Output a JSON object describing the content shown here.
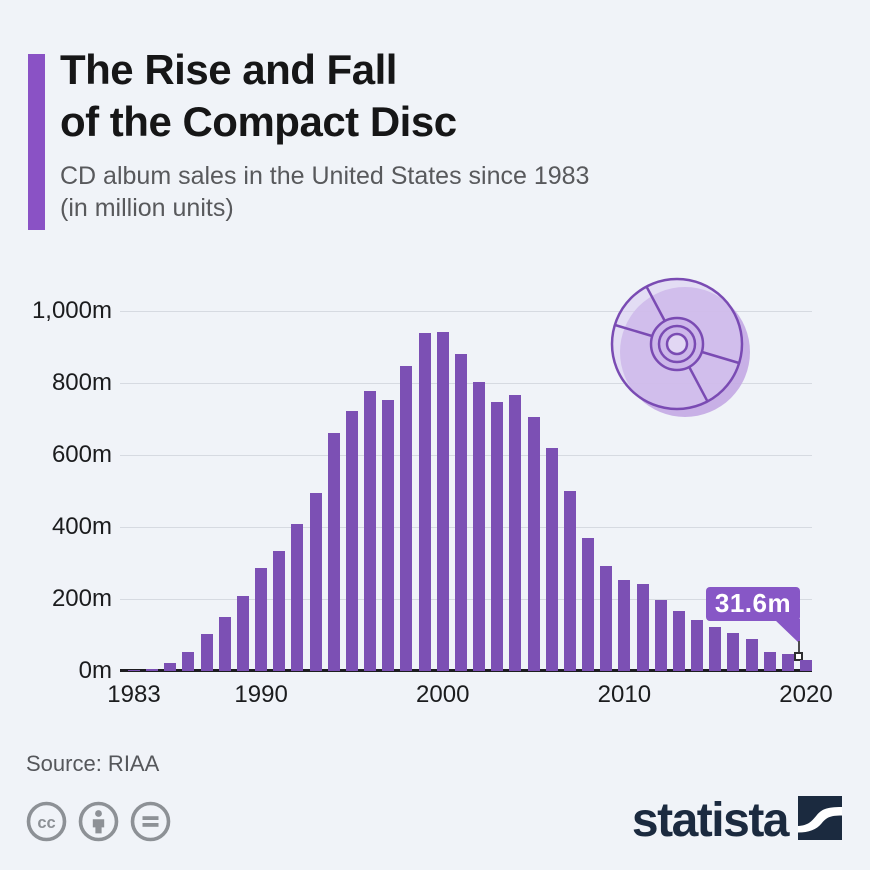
{
  "header": {
    "title": "The Rise and Fall\nof the Compact Disc",
    "subtitle": "CD album sales in the United States since 1983\n(in million units)"
  },
  "chart_data": {
    "type": "bar",
    "title": "The Rise and Fall of the Compact Disc",
    "subtitle": "CD album sales in the United States since 1983 (in million units)",
    "categories": [
      1983,
      1984,
      1985,
      1986,
      1987,
      1988,
      1989,
      1990,
      1991,
      1992,
      1993,
      1994,
      1995,
      1996,
      1997,
      1998,
      1999,
      2000,
      2001,
      2002,
      2003,
      2004,
      2005,
      2006,
      2007,
      2008,
      2009,
      2010,
      2011,
      2012,
      2013,
      2014,
      2015,
      2016,
      2017,
      2018,
      2019,
      2020
    ],
    "values": [
      0.8,
      5.8,
      22.6,
      53.0,
      102.1,
      149.7,
      207.2,
      286.5,
      333.3,
      407.5,
      495.4,
      662.1,
      722.9,
      778.9,
      753.1,
      847.0,
      938.9,
      942.5,
      881.9,
      803.3,
      746.0,
      767.0,
      705.4,
      619.7,
      499.7,
      368.4,
      292.9,
      253.0,
      240.8,
      198.2,
      165.4,
      140.8,
      122.9,
      104.8,
      87.7,
      52.0,
      46.5,
      31.6
    ],
    "xlabel": "",
    "ylabel": "million units",
    "ylim": [
      0,
      1000
    ],
    "yticks": [
      0,
      200,
      400,
      600,
      800,
      1000
    ],
    "ytick_labels": [
      "0m",
      "200m",
      "400m",
      "600m",
      "800m",
      "1,000m"
    ],
    "xtick_labels": [
      "1983",
      "1990",
      "2000",
      "2010",
      "2020"
    ],
    "grid": true,
    "legend": false,
    "bar_color": "#7c50b4",
    "annotation": {
      "category": 2020,
      "label": "31.6m"
    }
  },
  "footer": {
    "source": "Source: RIAA",
    "license_icons": [
      "cc-icon",
      "cc-by-icon",
      "cc-nd-icon"
    ],
    "brand": "statista"
  },
  "colors": {
    "background": "#f0f3f8",
    "accent": "#8a52c5",
    "bar": "#7c50b4",
    "callout": "#8757c6",
    "cd_fill": "#c8b0e6",
    "cd_stroke": "#7a4bb3",
    "brand_navy": "#1b2a3f",
    "gray_icon": "#8d9196"
  }
}
